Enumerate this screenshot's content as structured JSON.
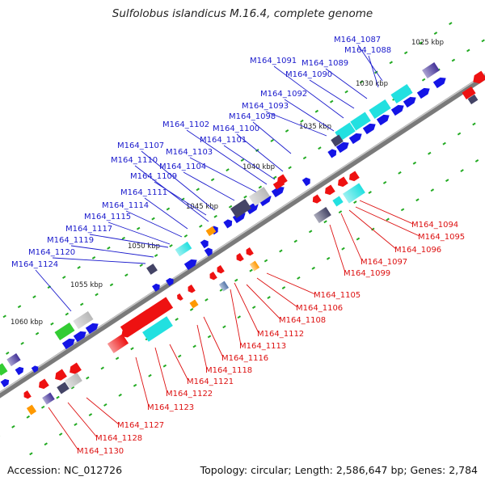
{
  "title": "Sulfolobus islandicus M.16.4, complete genome",
  "footer": {
    "accession": "Accession: NC_012726",
    "summary": "Topology: circular; Length: 2,586,647 bp; Genes: 2,784"
  },
  "colors": {
    "forward_gene": "#1414e6",
    "reverse_gene": "#ee1111",
    "cyan": "#22e0e0",
    "gray": "#b8b8b8",
    "dark_slate": "#444466",
    "purple": "#443399",
    "orange": "#ff9900",
    "green": "#33cc33",
    "steel_blue": "#5577aa",
    "forward_label": "#1a1acc",
    "reverse_label": "#dd1111",
    "backbone": "#808080",
    "dots": "#22aa22"
  },
  "kbp_ticks": [
    "1025 kbp",
    "1030 kbp",
    "1035 kbp",
    "1040 kbp",
    "1045 kbp",
    "1050 kbp",
    "1055 kbp",
    "1060 kbp"
  ],
  "forward_labels": [
    "M164_1087",
    "M164_1088",
    "M164_1089",
    "M164_1090",
    "M164_1091",
    "M164_1092",
    "M164_1093",
    "M164_1098",
    "M164_1100",
    "M164_1101",
    "M164_1102",
    "M164_1103",
    "M164_1104",
    "M164_1107",
    "M164_1109",
    "M164_1110",
    "M164_1111",
    "M164_1114",
    "M164_1115",
    "M164_1117",
    "M164_1119",
    "M164_1120",
    "M164_1124"
  ],
  "reverse_labels": [
    "M164_1094",
    "M164_1095",
    "M164_1096",
    "M164_1097",
    "M164_1099",
    "M164_1105",
    "M164_1106",
    "M164_1108",
    "M164_1112",
    "M164_1113",
    "M164_1116",
    "M164_1118",
    "M164_1121",
    "M164_1122",
    "M164_1123",
    "M164_1127",
    "M164_1128",
    "M164_1130"
  ]
}
